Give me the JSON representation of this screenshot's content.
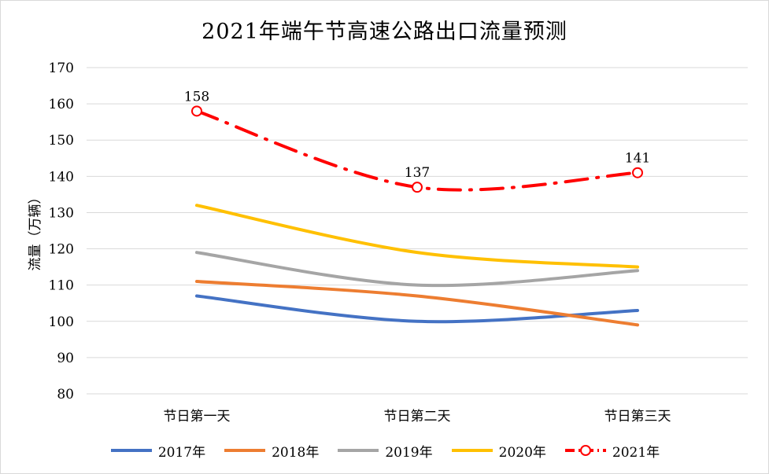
{
  "chart_data": {
    "type": "line",
    "title": "2021年端午节高速公路出口流量预测",
    "ylabel": "流量（万辆）",
    "xlabel": "",
    "categories": [
      "节日第一天",
      "节日第二天",
      "节日第三天"
    ],
    "ylim": [
      80,
      170
    ],
    "yticks": [
      80,
      90,
      100,
      110,
      120,
      130,
      140,
      150,
      160,
      170
    ],
    "grid": true,
    "legend_position": "bottom",
    "series": [
      {
        "name": "2017年",
        "values": [
          107,
          100,
          103
        ],
        "color": "#4472C4",
        "style": "solid"
      },
      {
        "name": "2018年",
        "values": [
          111,
          107,
          99
        ],
        "color": "#ED7D31",
        "style": "solid"
      },
      {
        "name": "2019年",
        "values": [
          119,
          110,
          114
        ],
        "color": "#A5A5A5",
        "style": "solid"
      },
      {
        "name": "2020年",
        "values": [
          132,
          119,
          115
        ],
        "color": "#FFC000",
        "style": "solid"
      },
      {
        "name": "2021年",
        "values": [
          158,
          137,
          141
        ],
        "color": "#FF0000",
        "style": "dash-dot",
        "markers": true,
        "data_labels": [
          "158",
          "137",
          "141"
        ]
      }
    ]
  }
}
